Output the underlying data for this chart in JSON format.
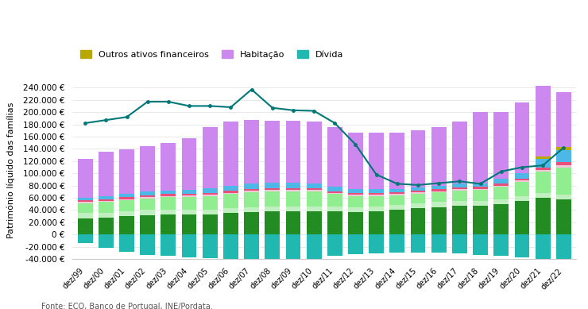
{
  "years": [
    "dez/99",
    "dez/00",
    "dez/01",
    "dez/02",
    "dez/03",
    "dez/04",
    "dez/05",
    "dez/06",
    "dez/07",
    "dez/08",
    "dez/09",
    "dez/10",
    "dez/11",
    "dez/12",
    "dez/13",
    "dez/14",
    "dez/15",
    "dez/16",
    "dez/17",
    "dez/18",
    "dez/19",
    "dez/20",
    "dez/21",
    "dez/22"
  ],
  "habitacao_propria": [
    27000,
    28000,
    30000,
    32000,
    33000,
    33000,
    33000,
    35000,
    37000,
    38000,
    38000,
    38000,
    38000,
    37000,
    38000,
    40000,
    43000,
    45000,
    47000,
    47000,
    50000,
    55000,
    60000,
    57000
  ],
  "terrenos": [
    8000,
    8000,
    8000,
    8000,
    8000,
    8000,
    8000,
    8000,
    8000,
    8000,
    8000,
    8000,
    8000,
    8000,
    8000,
    8000,
    8000,
    8000,
    8000,
    8000,
    8000,
    8000,
    8000,
    8000
  ],
  "outros_imoveis": [
    16000,
    17000,
    18000,
    19000,
    20000,
    21000,
    22000,
    23000,
    24000,
    24000,
    24000,
    24000,
    20000,
    18000,
    17000,
    16000,
    16000,
    16000,
    17000,
    18000,
    20000,
    23000,
    35000,
    45000
  ],
  "seguros_pensoes": [
    2000,
    2000,
    2000,
    2000,
    2000,
    2000,
    2500,
    2500,
    2500,
    2500,
    2500,
    2500,
    2000,
    2000,
    2000,
    2000,
    2000,
    2000,
    2000,
    2000,
    2000,
    2000,
    2500,
    3000
  ],
  "depositos_moeda": [
    3000,
    3000,
    3000,
    3000,
    3000,
    3000,
    3000,
    3000,
    3500,
    3500,
    3500,
    3000,
    3000,
    3000,
    3000,
    3000,
    3000,
    3000,
    3000,
    3000,
    3000,
    3500,
    4000,
    5000
  ],
  "acoes_participacoes": [
    4000,
    5000,
    5000,
    6000,
    6000,
    6000,
    7000,
    8000,
    9000,
    9000,
    9000,
    8000,
    7000,
    6000,
    6000,
    5000,
    5000,
    5000,
    6000,
    6000,
    8000,
    9000,
    14000,
    20000
  ],
  "outros_ativos_fin": [
    0,
    0,
    0,
    0,
    0,
    0,
    0,
    0,
    0,
    0,
    0,
    0,
    0,
    0,
    0,
    0,
    0,
    0,
    0,
    0,
    0,
    0,
    4000,
    5000
  ],
  "habitacao": [
    64000,
    72000,
    73000,
    75000,
    78000,
    85000,
    100000,
    105000,
    103000,
    101000,
    101000,
    101000,
    97000,
    92000,
    92000,
    92000,
    93000,
    96000,
    101000,
    116000,
    109000,
    115000,
    116000,
    90000
  ],
  "divida": [
    -14000,
    -21000,
    -28000,
    -33000,
    -35000,
    -37000,
    -38000,
    -43000,
    -44000,
    -44000,
    -43000,
    -40000,
    -35000,
    -32000,
    -31000,
    -30000,
    -30000,
    -30000,
    -31000,
    -33000,
    -35000,
    -37000,
    -43000,
    -42000
  ],
  "line_data": [
    182000,
    187000,
    192000,
    217000,
    217000,
    210000,
    210000,
    208000,
    237000,
    207000,
    203000,
    202000,
    182000,
    147000,
    98000,
    83000,
    81000,
    84000,
    87000,
    83000,
    103000,
    110000,
    113000,
    142000
  ],
  "colors": {
    "habitacao": "#cc88ee",
    "outros_ativos_fin": "#b8a800",
    "acoes_participacoes": "#4db8e8",
    "depositos_moeda": "#e8507a",
    "seguros_pensoes": "#f0c8d8",
    "outros_imoveis": "#90ee90",
    "terrenos": "#c0f0c0",
    "habitacao_propria": "#228B22",
    "divida": "#20b8b0",
    "line": "#007878"
  },
  "ylabel": "Património líquido das famílias",
  "ylim": [
    -40000,
    250000
  ],
  "yticks": [
    -40000,
    -20000,
    0,
    20000,
    40000,
    60000,
    80000,
    100000,
    120000,
    140000,
    160000,
    180000,
    200000,
    220000,
    240000
  ],
  "source": "Fonte: ECO, Banco de Portugal, INE/Pordata.",
  "legend_items": [
    {
      "label": "Outros ativos financeiros",
      "color": "#b8a800"
    },
    {
      "label": "Habitação",
      "color": "#cc88ee"
    },
    {
      "label": "Dívida",
      "color": "#20b8b0"
    }
  ]
}
